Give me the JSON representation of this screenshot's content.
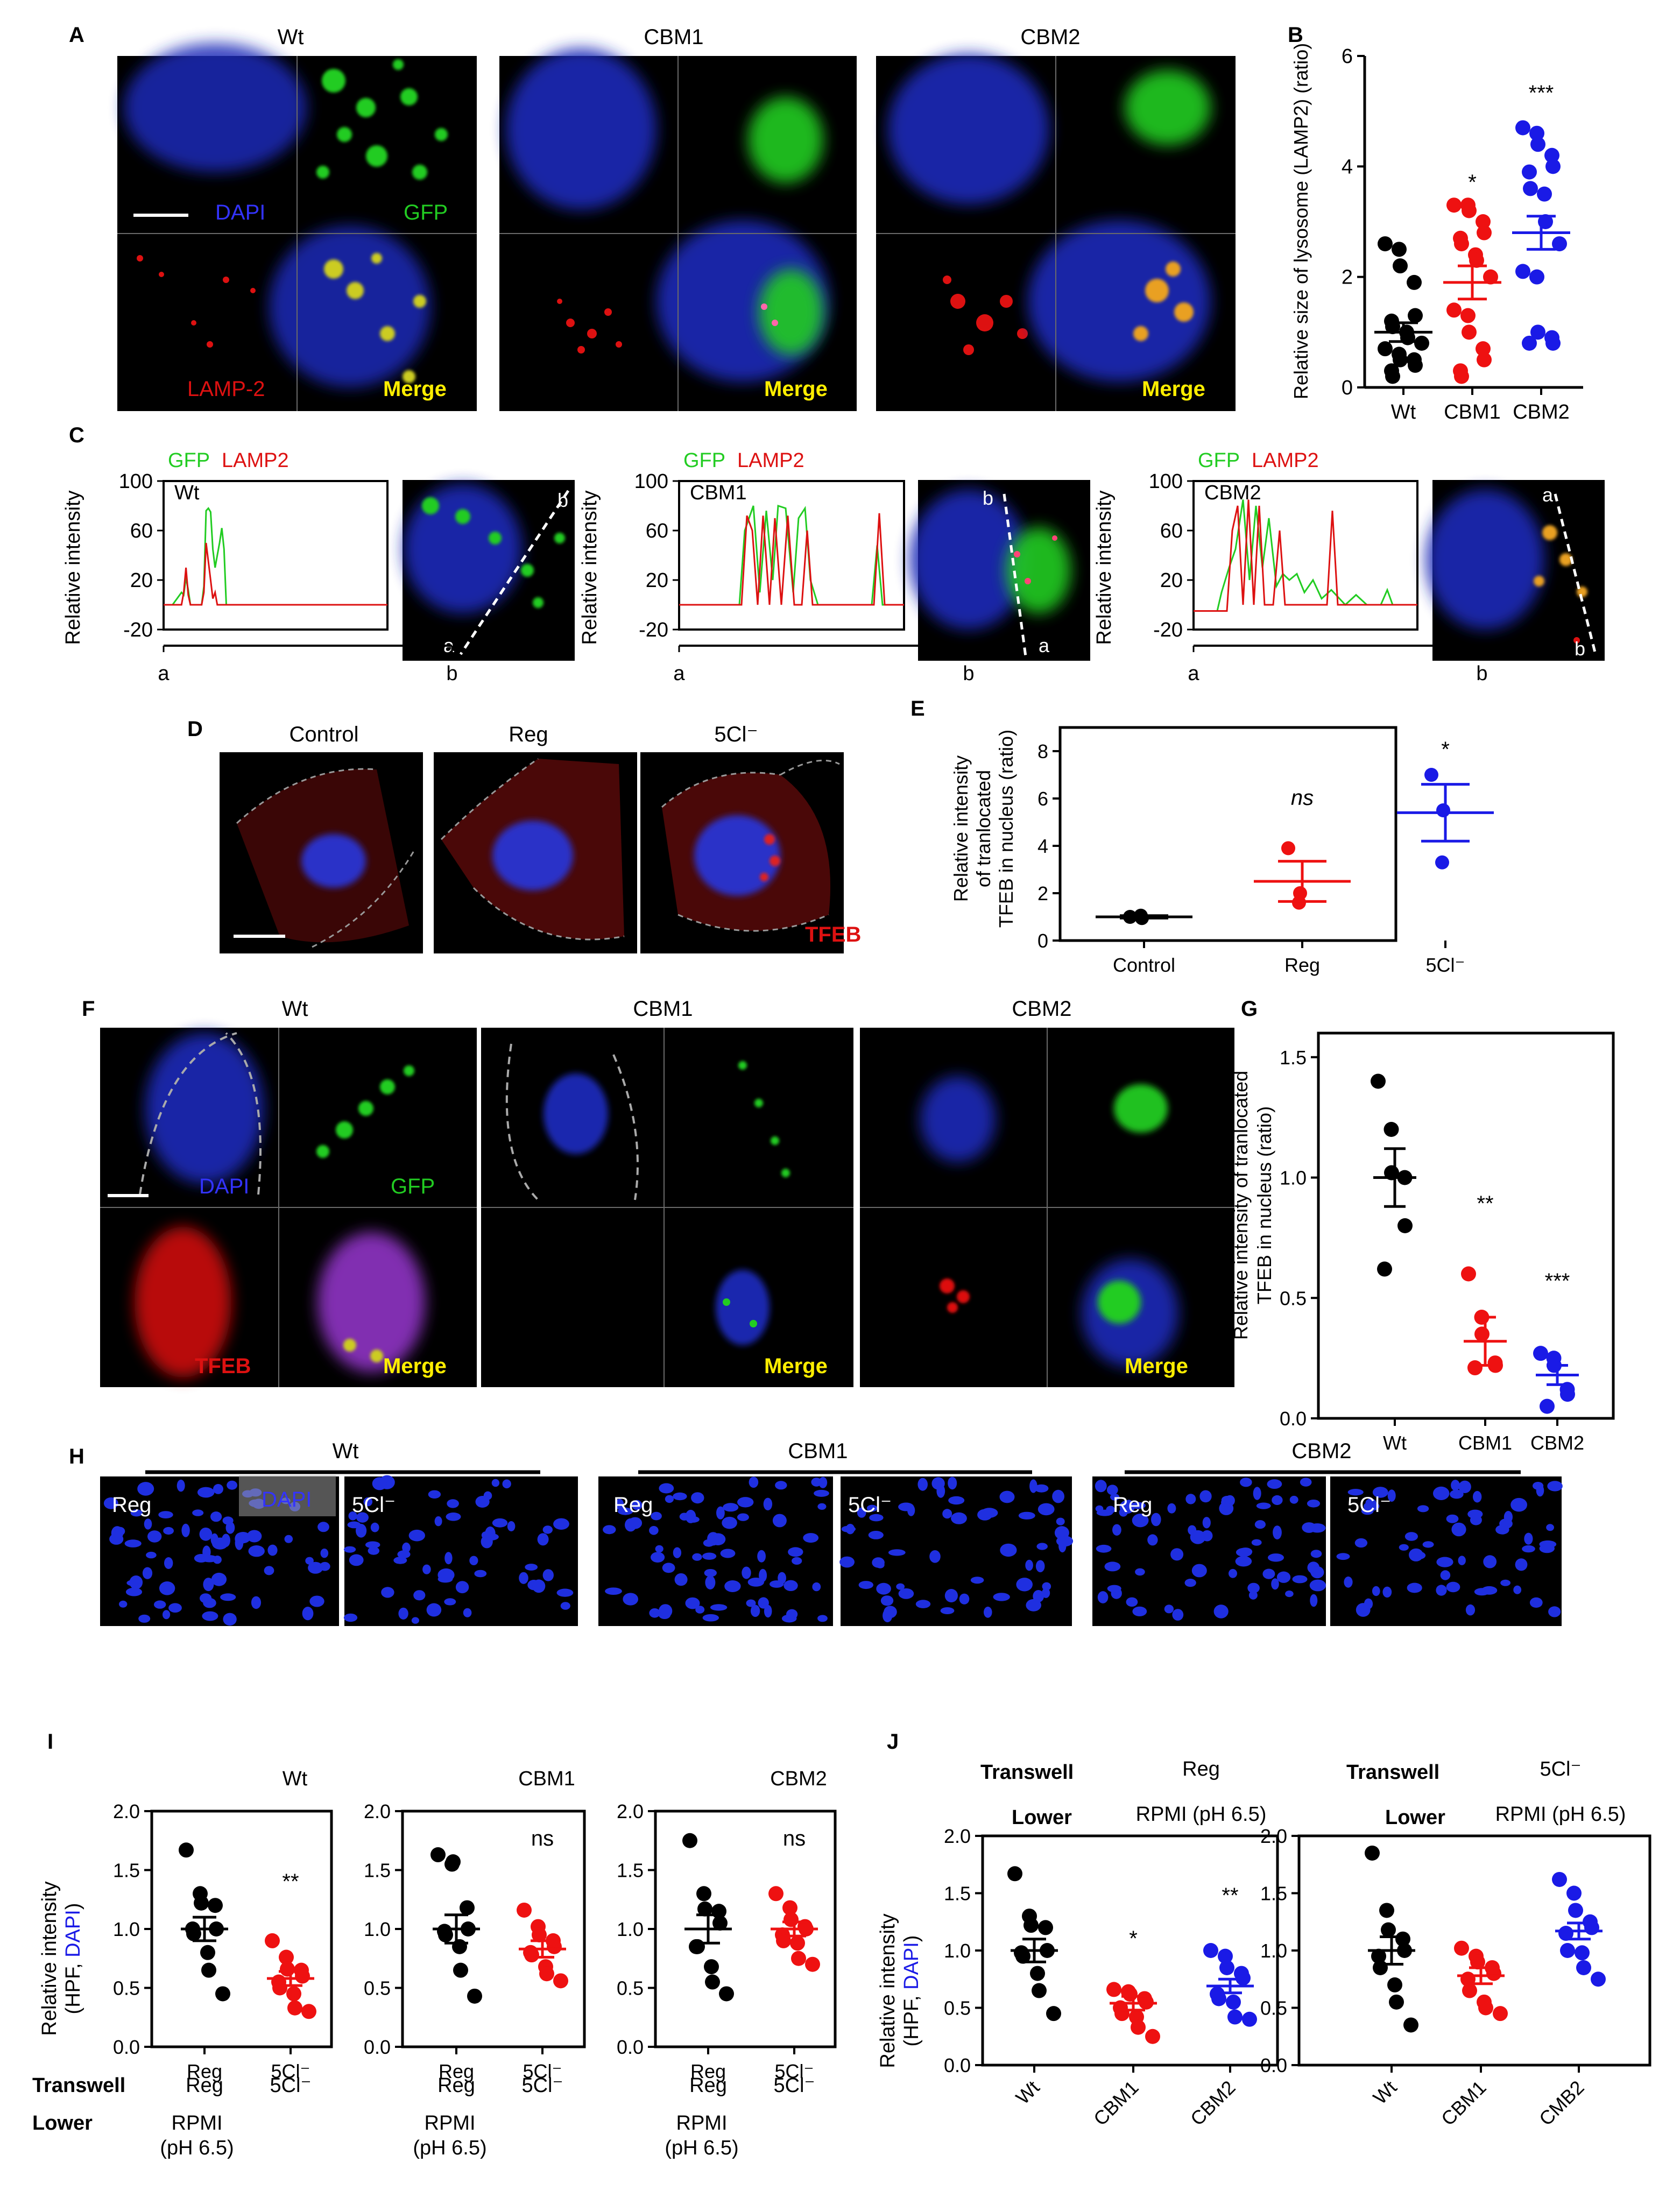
{
  "panel_letters": {
    "A": "A",
    "B": "B",
    "C": "C",
    "D": "D",
    "E": "E",
    "F": "F",
    "G": "G",
    "H": "H",
    "I": "I",
    "J": "J"
  },
  "groups": {
    "wt": "Wt",
    "cbm1": "CBM1",
    "cbm2": "CBM2",
    "cmb2": "CMB2",
    "control": "Control",
    "reg": "Reg",
    "cl5": "5Cl⁻"
  },
  "micro_labels": {
    "dapi": "DAPI",
    "gfp": "GFP",
    "lamp2": "LAMP-2",
    "merge": "Merge",
    "tfeb": "TFEB"
  },
  "legend_c": {
    "gfp": "GFP",
    "lamp2": "LAMP2"
  },
  "colors": {
    "wt": "#000000",
    "cbm1": "#ee1111",
    "cbm2": "#1a1ae6",
    "gfp": "#22cc22",
    "lamp": "#dd1111",
    "merge_label": "#ffee00",
    "dapi_label": "#3333ff"
  },
  "sig": {
    "one": "*",
    "two": "**",
    "three": "***",
    "ns_italic": "ns",
    "ns": "ns"
  },
  "axis_titles": {
    "B_y": "Relative size of lysosome (LAMP2) (ratio)",
    "C_y": "Relative intensity",
    "E_y1": "Relative intensity",
    "E_y2": "of tranlocated",
    "E_y3": "TFEB in nucleus (ratio)",
    "G_y1": "Relative intensity of tranlocated",
    "G_y2": "TFEB in nucleus (ratio)",
    "IJ_y1": "Relative intensity",
    "IJ_y2_pre": "(HPF, ",
    "IJ_y2_dapi": "DAPI",
    "IJ_y2_post": ")"
  },
  "transwell": {
    "transwell": "Transwell",
    "lower": "Lower",
    "reg": "Reg",
    "cl5": "5Cl⁻",
    "rpmi_line": "RPMI (pH 6.5)",
    "rpmi": "RPMI",
    "ph": "(pH 6.5)",
    "a": "a",
    "b": "b"
  },
  "chart_data": [
    {
      "id": "B",
      "type": "scatter",
      "ylabel": "Relative size of lysosome (LAMP2) (ratio)",
      "ylim": [
        0,
        6
      ],
      "yticks": [
        0,
        2,
        4,
        6
      ],
      "categories": [
        "Wt",
        "CBM1",
        "CBM2"
      ],
      "series": [
        {
          "category": "Wt",
          "mean": 1.0,
          "sem": 0.17,
          "values": [
            2.6,
            2.5,
            2.2,
            1.9,
            1.3,
            1.2,
            1.1,
            1.0,
            0.9,
            0.8,
            0.7,
            0.6,
            0.5,
            0.5,
            0.4,
            0.3,
            0.2
          ]
        },
        {
          "category": "CBM1",
          "mean": 1.9,
          "sem": 0.3,
          "values": [
            3.3,
            3.3,
            3.2,
            3.0,
            2.8,
            2.7,
            2.6,
            2.4,
            2.3,
            2.0,
            1.4,
            1.3,
            1.0,
            0.7,
            0.5,
            0.3,
            0.2
          ]
        },
        {
          "category": "CBM2",
          "mean": 2.8,
          "sem": 0.3,
          "values": [
            4.7,
            4.6,
            4.4,
            4.2,
            4.0,
            3.9,
            3.6,
            3.5,
            3.0,
            2.6,
            2.1,
            2.0,
            1.0,
            0.9,
            0.8,
            0.8
          ]
        }
      ],
      "annotations": [
        "*",
        "***"
      ]
    },
    {
      "id": "C-Wt",
      "type": "line",
      "ylabel": "Relative intensity",
      "ylim": [
        -20,
        100
      ],
      "yticks": [
        -20,
        20,
        60,
        100
      ],
      "xticks": [
        "a",
        "b"
      ],
      "x": [
        0,
        4,
        6,
        8,
        9,
        10,
        11,
        12,
        15,
        17,
        18,
        19,
        20,
        21,
        22,
        23,
        24,
        25,
        26,
        27,
        28,
        29,
        30,
        32,
        35,
        38,
        44,
        50,
        100
      ],
      "series": [
        {
          "name": "GFP",
          "values": [
            0,
            0,
            5,
            10,
            8,
            22,
            12,
            0,
            0,
            0,
            15,
            76,
            78,
            75,
            45,
            30,
            40,
            50,
            62,
            45,
            0,
            0,
            0,
            0,
            0,
            0,
            0,
            0,
            0
          ]
        },
        {
          "name": "LAMP2",
          "values": [
            0,
            0,
            0,
            0,
            10,
            30,
            8,
            0,
            0,
            0,
            10,
            50,
            35,
            20,
            5,
            10,
            0,
            0,
            0,
            0,
            0,
            0,
            0,
            0,
            0,
            0,
            0,
            0,
            0
          ]
        }
      ]
    },
    {
      "id": "C-CBM1",
      "type": "line",
      "ylabel": "Relative intensity",
      "ylim": [
        -20,
        100
      ],
      "yticks": [
        -20,
        20,
        60,
        100
      ],
      "xticks": [
        "a",
        "b"
      ],
      "series": [
        {
          "name": "GFP"
        },
        {
          "name": "LAMP2"
        }
      ]
    },
    {
      "id": "C-CBM2",
      "type": "line",
      "ylabel": "Relative intensity",
      "ylim": [
        -20,
        100
      ],
      "yticks": [
        -20,
        20,
        60,
        100
      ],
      "xticks": [
        "a",
        "b"
      ],
      "series": [
        {
          "name": "GFP"
        },
        {
          "name": "LAMP2"
        }
      ]
    },
    {
      "id": "E",
      "type": "scatter",
      "ylabel": "Relative intensity of tranlocated TFEB in nucleus (ratio)",
      "ylim": [
        0,
        9
      ],
      "yticks": [
        0,
        2,
        4,
        6,
        8
      ],
      "categories": [
        "Control",
        "Reg",
        "5Cl⁻"
      ],
      "series": [
        {
          "category": "Control",
          "mean": 1.0,
          "sem": 0.05,
          "values": [
            1.0,
            0.95,
            1.05
          ]
        },
        {
          "category": "Reg",
          "mean": 2.5,
          "sem": 0.85,
          "values": [
            3.9,
            2.0,
            1.6
          ]
        },
        {
          "category": "5Cl⁻",
          "mean": 5.4,
          "sem": 1.2,
          "values": [
            7.0,
            5.5,
            3.3
          ]
        }
      ],
      "annotations": [
        "ns",
        "*"
      ]
    },
    {
      "id": "G",
      "type": "scatter",
      "ylabel": "Relative intensity of tranlocated TFEB in nucleus (ratio)",
      "ylim": [
        0,
        1.6
      ],
      "yticks": [
        0.0,
        0.5,
        1.0,
        1.5
      ],
      "categories": [
        "Wt",
        "CBM1",
        "CBM2"
      ],
      "series": [
        {
          "category": "Wt",
          "mean": 1.0,
          "sem": 0.12,
          "values": [
            1.4,
            1.2,
            1.02,
            1.0,
            0.8,
            0.62
          ]
        },
        {
          "category": "CBM1",
          "mean": 0.32,
          "sem": 0.1,
          "values": [
            0.6,
            0.42,
            0.35,
            0.23,
            0.22,
            0.21
          ]
        },
        {
          "category": "CBM2",
          "mean": 0.18,
          "sem": 0.04,
          "values": [
            0.27,
            0.25,
            0.22,
            0.12,
            0.1,
            0.05
          ]
        }
      ],
      "annotations": [
        "**",
        "***"
      ]
    },
    {
      "id": "I-Wt",
      "type": "scatter",
      "ylabel": "Relative intensity (HPF, DAPI)",
      "ylim": [
        0,
        2
      ],
      "yticks": [
        0.0,
        0.5,
        1.0,
        1.5,
        2.0
      ],
      "categories": [
        "Reg",
        "5Cl⁻"
      ],
      "series": [
        {
          "category": "Reg",
          "mean": 1.0,
          "sem": 0.1,
          "values": [
            1.67,
            1.3,
            1.22,
            1.2,
            1.0,
            1.0,
            0.96,
            0.8,
            0.65,
            0.45
          ]
        },
        {
          "category": "5Cl⁻",
          "mean": 0.58,
          "sem": 0.06,
          "values": [
            0.9,
            0.76,
            0.66,
            0.65,
            0.6,
            0.55,
            0.5,
            0.45,
            0.33,
            0.3
          ]
        }
      ],
      "annotations": [
        "**"
      ]
    },
    {
      "id": "I-CBM1",
      "type": "scatter",
      "ylabel": "",
      "ylim": [
        0,
        2
      ],
      "yticks": [
        0.0,
        0.5,
        1.0,
        1.5,
        2.0
      ],
      "categories": [
        "Reg",
        "5Cl⁻"
      ],
      "series": [
        {
          "category": "Reg",
          "mean": 1.0,
          "sem": 0.12,
          "values": [
            1.63,
            1.55,
            1.57,
            1.18,
            1.0,
            0.98,
            0.95,
            0.85,
            0.65,
            0.43
          ]
        },
        {
          "category": "5Cl⁻",
          "mean": 0.83,
          "sem": 0.07,
          "values": [
            1.16,
            1.02,
            0.95,
            0.9,
            0.85,
            0.8,
            0.78,
            0.68,
            0.62,
            0.56
          ]
        }
      ],
      "annotations": [
        "ns"
      ]
    },
    {
      "id": "I-CBM2",
      "type": "scatter",
      "ylabel": "",
      "ylim": [
        0,
        2
      ],
      "yticks": [
        0.0,
        0.5,
        1.0,
        1.5,
        2.0
      ],
      "categories": [
        "Reg",
        "5Cl⁻"
      ],
      "series": [
        {
          "category": "Reg",
          "mean": 1.0,
          "sem": 0.12,
          "values": [
            1.75,
            1.3,
            1.17,
            1.15,
            1.05,
            0.85,
            0.85,
            0.68,
            0.55,
            0.45
          ]
        },
        {
          "category": "5Cl⁻",
          "mean": 1.0,
          "sem": 0.06,
          "values": [
            1.3,
            1.18,
            1.08,
            1.02,
            1.0,
            0.95,
            0.9,
            0.88,
            0.75,
            0.7
          ]
        }
      ],
      "annotations": [
        "ns"
      ]
    },
    {
      "id": "J-Reg",
      "type": "scatter",
      "ylabel": "Relative intensity (HPF, DAPI)",
      "ylim": [
        0,
        2
      ],
      "yticks": [
        0.0,
        0.5,
        1.0,
        1.5,
        2.0
      ],
      "categories": [
        "Wt",
        "CBM1",
        "CBM2"
      ],
      "series": [
        {
          "category": "Wt",
          "mean": 1.0,
          "sem": 0.1,
          "values": [
            1.67,
            1.3,
            1.22,
            1.2,
            1.0,
            0.98,
            0.95,
            0.8,
            0.65,
            0.45
          ]
        },
        {
          "category": "CBM1",
          "mean": 0.54,
          "sem": 0.06,
          "values": [
            0.66,
            0.64,
            0.62,
            0.58,
            0.55,
            0.5,
            0.45,
            0.42,
            0.33,
            0.25
          ]
        },
        {
          "category": "CBM2",
          "mean": 0.69,
          "sem": 0.06,
          "values": [
            1.0,
            0.95,
            0.85,
            0.8,
            0.76,
            0.62,
            0.58,
            0.55,
            0.42,
            0.4
          ]
        }
      ],
      "annotations": [
        "*",
        "**"
      ]
    },
    {
      "id": "J-5Cl",
      "type": "scatter",
      "ylabel": "",
      "ylim": [
        0,
        2
      ],
      "yticks": [
        0.0,
        0.5,
        1.0,
        1.5,
        2.0
      ],
      "categories": [
        "Wt",
        "CBM1",
        "CMB2"
      ],
      "series": [
        {
          "category": "Wt",
          "mean": 1.0,
          "sem": 0.12,
          "values": [
            1.85,
            1.35,
            1.18,
            1.1,
            1.0,
            0.95,
            0.85,
            0.7,
            0.55,
            0.35
          ]
        },
        {
          "category": "CBM1",
          "mean": 0.78,
          "sem": 0.07,
          "values": [
            1.02,
            0.95,
            0.9,
            0.85,
            0.8,
            0.75,
            0.65,
            0.55,
            0.5,
            0.45
          ]
        },
        {
          "category": "CMB2",
          "mean": 1.17,
          "sem": 0.07,
          "values": [
            1.62,
            1.5,
            1.35,
            1.25,
            1.2,
            1.15,
            1.0,
            0.98,
            0.85,
            0.75
          ]
        }
      ]
    }
  ]
}
